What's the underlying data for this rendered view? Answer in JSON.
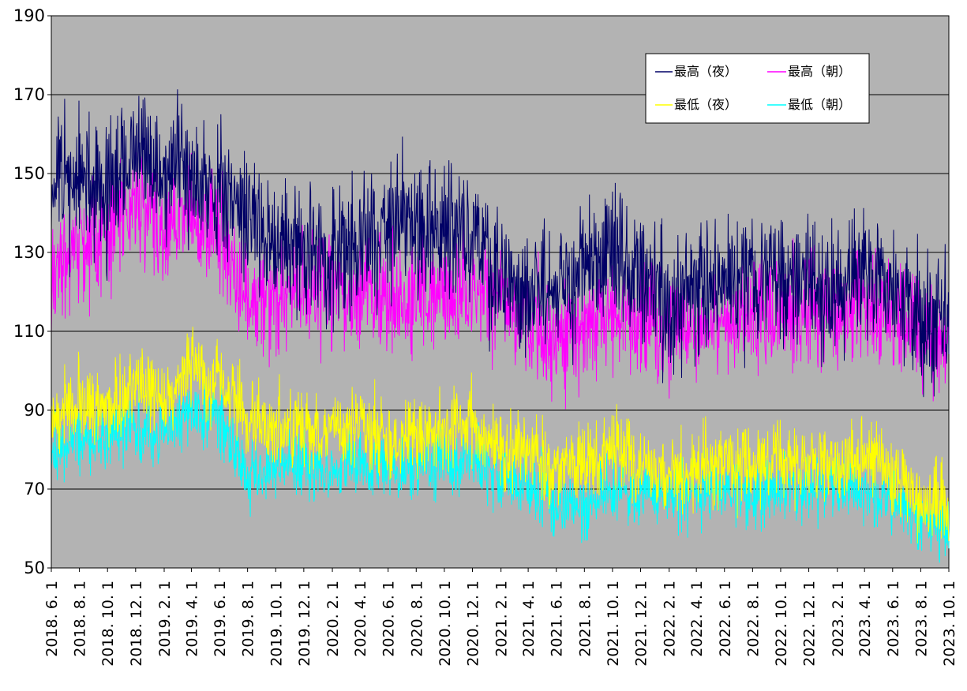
{
  "chart_data": {
    "type": "line",
    "title": "",
    "xlabel": "",
    "ylabel": "",
    "ylim": [
      50,
      190
    ],
    "yticks": [
      50,
      70,
      90,
      110,
      130,
      150,
      170,
      190
    ],
    "xlim": [
      "2018-06-01",
      "2023-10-01"
    ],
    "xtick_labels": [
      "2018. 6. 1",
      "2018. 8. 1",
      "2018. 10. 1",
      "2018. 12. 1",
      "2019. 2. 1",
      "2019. 4. 1",
      "2019. 6. 1",
      "2019. 8. 1",
      "2019. 10. 1",
      "2019. 12. 1",
      "2020. 2. 1",
      "2020. 4. 1",
      "2020. 6. 1",
      "2020. 8. 1",
      "2020. 10. 1",
      "2020. 12. 1",
      "2021. 2. 1",
      "2021. 4. 1",
      "2021. 6. 1",
      "2021. 8. 1",
      "2021. 10. 1",
      "2021. 12. 1",
      "2022. 2. 1",
      "2022. 4. 1",
      "2022. 6. 1",
      "2022. 8. 1",
      "2022. 10. 1",
      "2022. 12. 1",
      "2023. 2. 1",
      "2023. 4. 1",
      "2023. 6. 1",
      "2023. 8. 1",
      "2023. 10. 1"
    ],
    "grid": true,
    "legend_position": "top-right",
    "background_color": "#b3b3b3",
    "x": [
      "2018-06-01",
      "2018-08-01",
      "2018-10-01",
      "2018-12-01",
      "2019-02-01",
      "2019-04-01",
      "2019-06-01",
      "2019-08-01",
      "2019-10-01",
      "2019-12-01",
      "2020-02-01",
      "2020-04-01",
      "2020-06-01",
      "2020-08-01",
      "2020-10-01",
      "2020-12-01",
      "2021-02-01",
      "2021-04-01",
      "2021-06-01",
      "2021-08-01",
      "2021-10-01",
      "2021-12-01",
      "2022-02-01",
      "2022-04-01",
      "2022-06-01",
      "2022-08-01",
      "2022-10-01",
      "2022-12-01",
      "2023-02-01",
      "2023-04-01",
      "2023-06-01",
      "2023-08-01",
      "2023-10-01"
    ],
    "series": [
      {
        "name": "最高（夜）",
        "color": "#000066",
        "values": [
          148,
          148,
          145,
          155,
          150,
          152,
          146,
          140,
          133,
          130,
          128,
          132,
          138,
          137,
          135,
          136,
          122,
          122,
          120,
          126,
          128,
          122,
          118,
          120,
          122,
          124,
          124,
          122,
          122,
          124,
          120,
          112,
          112
        ]
      },
      {
        "name": "最高（朝）",
        "color": "#ff00ff",
        "values": [
          125,
          130,
          135,
          143,
          135,
          140,
          136,
          117,
          119,
          120,
          118,
          118,
          118,
          119,
          120,
          122,
          116,
          112,
          108,
          111,
          114,
          112,
          110,
          111,
          113,
          113,
          115,
          115,
          115,
          117,
          113,
          108,
          106
        ]
      },
      {
        "name": "最低（夜）",
        "color": "#ffff00",
        "values": [
          88,
          92,
          90,
          96,
          94,
          100,
          96,
          89,
          86,
          86,
          85,
          87,
          82,
          84,
          84,
          88,
          80,
          79,
          75,
          77,
          80,
          76,
          74,
          76,
          76,
          76,
          78,
          77,
          77,
          78,
          74,
          68,
          65
        ]
      },
      {
        "name": "最低（朝）",
        "color": "#00ffff",
        "values": [
          80,
          82,
          84,
          86,
          84,
          90,
          88,
          74,
          76,
          76,
          75,
          77,
          76,
          77,
          77,
          78,
          73,
          72,
          66,
          66,
          70,
          68,
          68,
          69,
          69,
          69,
          70,
          70,
          70,
          70,
          66,
          62,
          60
        ]
      }
    ]
  }
}
